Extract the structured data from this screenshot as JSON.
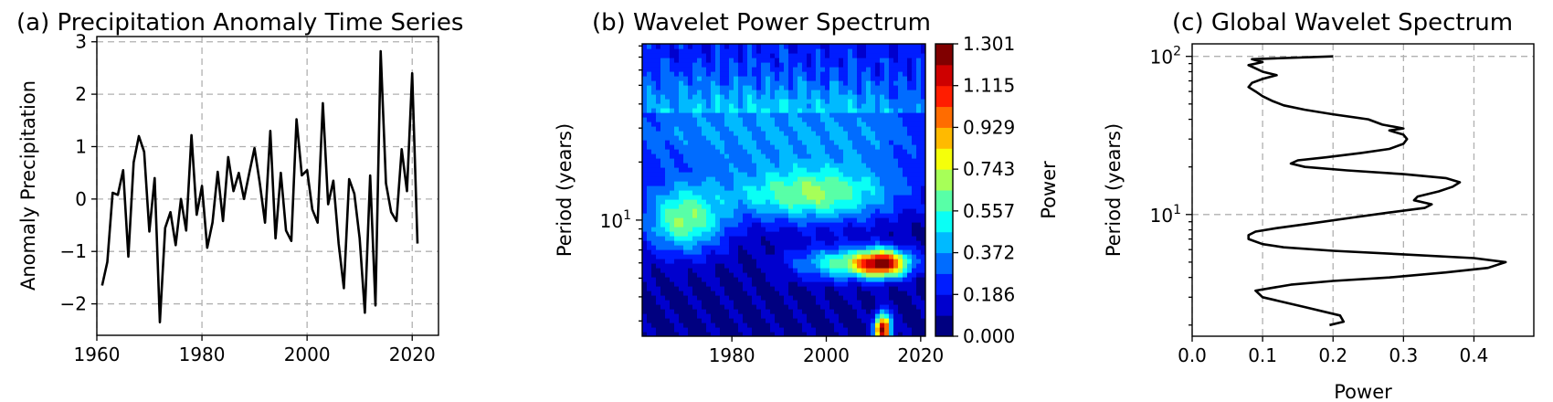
{
  "chart_data": [
    {
      "type": "line",
      "title": "(a) Precipitation Anomaly Time Series",
      "xlabel": "",
      "ylabel": "Anomaly Precipitation",
      "xlim": [
        1960,
        2025
      ],
      "ylim": [
        -2.6,
        3.1
      ],
      "xticks": [
        "1960",
        "1980",
        "2000",
        "2020"
      ],
      "xtick_values": [
        1960,
        1980,
        2000,
        2020
      ],
      "yticks": [
        "−2",
        "−1",
        "0",
        "1",
        "2",
        "3"
      ],
      "ytick_values": [
        -2,
        -1,
        0,
        1,
        2,
        3
      ],
      "grid": true,
      "line_color": "#000000",
      "x": [
        1961,
        1962,
        1963,
        1964,
        1965,
        1966,
        1967,
        1968,
        1969,
        1970,
        1971,
        1972,
        1973,
        1974,
        1975,
        1976,
        1977,
        1978,
        1979,
        1980,
        1981,
        1982,
        1983,
        1984,
        1985,
        1986,
        1987,
        1988,
        1989,
        1990,
        1991,
        1992,
        1993,
        1994,
        1995,
        1996,
        1997,
        1998,
        1999,
        2000,
        2001,
        2002,
        2003,
        2004,
        2005,
        2006,
        2007,
        2008,
        2009,
        2010,
        2011,
        2012,
        2013,
        2014,
        2015,
        2016,
        2017,
        2018,
        2019,
        2020,
        2021
      ],
      "y": [
        -1.65,
        -1.2,
        0.12,
        0.08,
        0.55,
        -1.1,
        0.7,
        1.2,
        0.9,
        -0.62,
        0.4,
        -2.35,
        -0.55,
        -0.25,
        -0.88,
        0.0,
        -0.6,
        1.22,
        -0.3,
        0.25,
        -0.93,
        -0.45,
        0.52,
        -0.42,
        0.8,
        0.15,
        0.5,
        0.0,
        0.5,
        0.97,
        0.3,
        -0.45,
        1.3,
        -0.75,
        0.5,
        -0.6,
        -0.8,
        1.52,
        0.45,
        0.55,
        -0.2,
        -0.45,
        1.83,
        -0.1,
        0.35,
        -0.85,
        -1.7,
        0.38,
        0.1,
        -0.75,
        -2.17,
        0.45,
        -2.03,
        2.82,
        0.3,
        -0.25,
        -0.42,
        0.95,
        0.15,
        2.4,
        -0.85
      ]
    },
    {
      "type": "heatmap",
      "title": "(b) Wavelet Power Spectrum",
      "xlabel": "",
      "ylabel": "Period (years)",
      "xlim": [
        1961,
        2021
      ],
      "ylim_period": [
        2.5,
        82
      ],
      "yscale": "log",
      "xticks": [
        "1980",
        "2000",
        "2020"
      ],
      "xtick_values": [
        1980,
        2000,
        2020
      ],
      "ytick_label": "10",
      "ytick_exponent": "1",
      "ytick_value": 10,
      "colormap": "jet",
      "colorbar_label": "Power",
      "colorbar_ticks": [
        "0.000",
        "0.186",
        "0.372",
        "0.557",
        "0.743",
        "0.929",
        "1.115",
        "1.301"
      ],
      "colorbar_range": [
        0,
        1.301
      ],
      "hotspots": [
        {
          "year": 1970,
          "period": 10,
          "power": 0.6,
          "spread_year": 6,
          "spread_logperiod": 0.12
        },
        {
          "year": 1997,
          "period": 13.5,
          "power": 0.55,
          "spread_year": 12,
          "spread_logperiod": 0.1
        },
        {
          "year": 2012,
          "period": 6,
          "power": 1.1,
          "spread_year": 4,
          "spread_logperiod": 0.05
        },
        {
          "year": 2003,
          "period": 6,
          "power": 0.5,
          "spread_year": 7,
          "spread_logperiod": 0.06
        },
        {
          "year": 2012,
          "period": 2.7,
          "power": 1.3,
          "spread_year": 1.2,
          "spread_logperiod": 0.06
        },
        {
          "year": 1975,
          "period": 30,
          "power": 0.3,
          "spread_year": 18,
          "spread_logperiod": 0.2
        },
        {
          "year": 2008,
          "period": 28,
          "power": 0.25,
          "spread_year": 15,
          "spread_logperiod": 0.2
        }
      ]
    },
    {
      "type": "line",
      "title": "(c) Global Wavelet Spectrum",
      "xlabel": "Power",
      "ylabel": "Period (years)",
      "xlim": [
        0,
        0.485
      ],
      "yscale": "log",
      "ylim_period": [
        1.7,
        120
      ],
      "xticks": [
        "0.0",
        "0.1",
        "0.2",
        "0.3",
        "0.4"
      ],
      "xtick_values": [
        0,
        0.1,
        0.2,
        0.3,
        0.4
      ],
      "yticks": [
        {
          "base": "10",
          "exp": "1",
          "value": 10
        },
        {
          "base": "10",
          "exp": "2",
          "value": 100
        }
      ],
      "grid": true,
      "line_color": "#000000",
      "period": [
        2.0,
        2.1,
        2.3,
        2.6,
        3.0,
        3.3,
        3.6,
        3.8,
        4.0,
        4.3,
        4.6,
        5.0,
        5.3,
        5.6,
        5.9,
        6.2,
        6.5,
        7.0,
        7.4,
        7.8,
        8.2,
        8.8,
        9.6,
        10.3,
        11.0,
        11.6,
        12.3,
        13.0,
        14.0,
        15.0,
        16.0,
        17.0,
        18.0,
        19.0,
        20.0,
        21.0,
        22.0,
        23.0,
        24.5,
        26.0,
        28.0,
        30.0,
        32.0,
        34.0,
        35.0,
        37.0,
        40.0,
        43.0,
        46.0,
        49.0,
        52.0,
        56.0,
        60.0,
        64.0,
        68.0,
        72.0,
        76.0,
        80.0,
        84.0,
        88.0,
        92.0,
        96.0,
        100.0
      ],
      "power": [
        0.195,
        0.215,
        0.21,
        0.16,
        0.1,
        0.09,
        0.14,
        0.2,
        0.28,
        0.36,
        0.42,
        0.445,
        0.4,
        0.3,
        0.2,
        0.13,
        0.1,
        0.08,
        0.08,
        0.09,
        0.12,
        0.17,
        0.23,
        0.28,
        0.33,
        0.34,
        0.315,
        0.32,
        0.35,
        0.37,
        0.38,
        0.36,
        0.3,
        0.22,
        0.16,
        0.14,
        0.15,
        0.19,
        0.24,
        0.28,
        0.3,
        0.305,
        0.3,
        0.28,
        0.3,
        0.27,
        0.25,
        0.2,
        0.16,
        0.13,
        0.115,
        0.1,
        0.09,
        0.08,
        0.085,
        0.1,
        0.12,
        0.1,
        0.09,
        0.08,
        0.1,
        0.085,
        0.2
      ]
    }
  ]
}
